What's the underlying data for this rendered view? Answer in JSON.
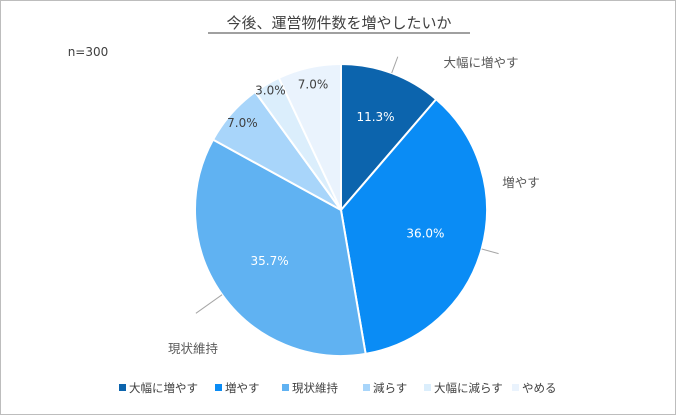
{
  "chart_data": {
    "type": "pie",
    "title": "今後、運営物件数を増やしたいか",
    "sample_size": "n=300",
    "legend_position": "bottom",
    "categories": [
      "大幅に増やす",
      "増やす",
      "現状維持",
      "減らす",
      "大幅に減らす",
      "やめる"
    ],
    "values": [
      11.3,
      36.0,
      35.7,
      7.0,
      3.0,
      7.0
    ],
    "value_labels": [
      "11.3%",
      "36.0%",
      "35.7%",
      "7.0%",
      "3.0%",
      "7.0%"
    ],
    "colors": [
      "#0c64ad",
      "#0a8cf5",
      "#60b2f2",
      "#a8d5fa",
      "#dbeefc",
      "#eaf3fd"
    ],
    "label_colors": [
      "#ffffff",
      "#ffffff",
      "#ffffff",
      "#404040",
      "#404040",
      "#404040"
    ],
    "category_labels_shown": [
      "大幅に増やす",
      "増やす",
      "現状維持"
    ]
  }
}
